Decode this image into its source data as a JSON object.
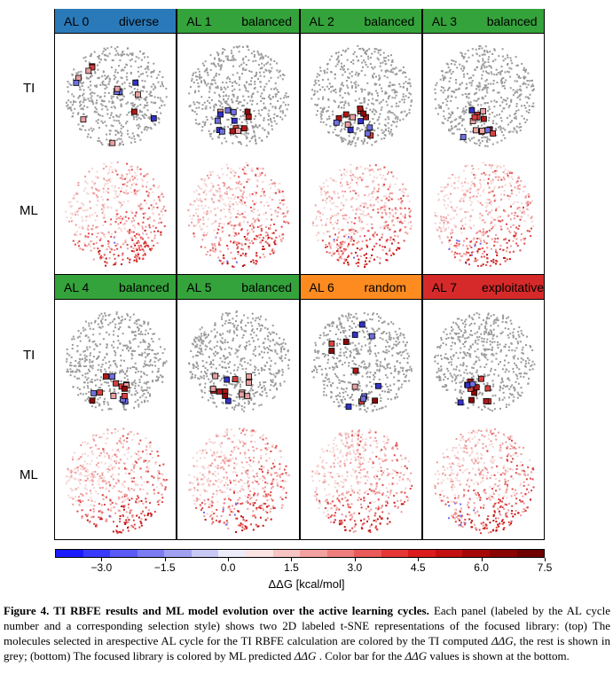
{
  "row_labels": {
    "ti": "TI",
    "ml": "ML"
  },
  "panels": [
    {
      "al": "AL 0",
      "style": "diverse",
      "color": "#2a7ab9"
    },
    {
      "al": "AL 1",
      "style": "balanced",
      "color": "#34a33b"
    },
    {
      "al": "AL 2",
      "style": "balanced",
      "color": "#34a33b"
    },
    {
      "al": "AL 3",
      "style": "balanced",
      "color": "#34a33b"
    },
    {
      "al": "AL 4",
      "style": "balanced",
      "color": "#34a33b"
    },
    {
      "al": "AL 5",
      "style": "balanced",
      "color": "#34a33b"
    },
    {
      "al": "AL 6",
      "style": "random",
      "color": "#fd8b20"
    },
    {
      "al": "AL 7",
      "style": "exploitative",
      "color": "#d62a2a"
    }
  ],
  "colorbar": {
    "ticks": [
      "−3.0",
      "−1.5",
      "0.0",
      "1.5",
      "3.0",
      "4.5",
      "6.0",
      "7.5"
    ],
    "tick_values": [
      -3.0,
      -1.5,
      0.0,
      1.5,
      3.0,
      4.5,
      6.0,
      7.5
    ],
    "range": [
      -4.1,
      7.5
    ],
    "label": "ΔΔG [kcal/mol]",
    "colors": [
      "#1a1aff",
      "#3a3aff",
      "#5a5af5",
      "#7b7bf2",
      "#a0a0f0",
      "#c8c8f4",
      "#ececf8",
      "#fbe3e3",
      "#f7c3c3",
      "#f2a0a0",
      "#ee7e7e",
      "#ea5a5a",
      "#e63737",
      "#dc1c1c",
      "#c41010",
      "#a60808",
      "#8a0303",
      "#6e0000"
    ]
  },
  "caption": {
    "bold": "Figure 4. TI RBFE results and ML model evolution over the active learning cycles.",
    "text1": " Each panel (labeled by the AL cycle number and a corresponding selection style) shows two 2D labeled t-SNE representations of the focused library: (top) The molecules selected in arespective AL cycle for the TI RBFE calculation are colored by the TI computed ",
    "ddg1": "ΔΔG",
    "text2": ", the rest is shown in grey; (bottom) The focused library is colored by ML predicted ",
    "ddg2": "ΔΔG",
    "text3": " . Color bar for the ",
    "ddg3": "ΔΔG",
    "text4": " values is shown at the bottom."
  }
}
